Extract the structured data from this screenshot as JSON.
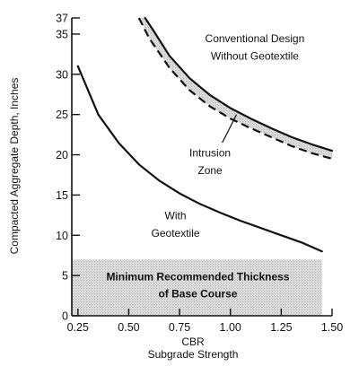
{
  "chart_data": {
    "type": "line",
    "xlabel": "CBR",
    "xlabel_sub": "Subgrade Strength",
    "ylabel": "Compacted Aggregate Depth, Inches",
    "xlim": [
      0.22,
      1.5
    ],
    "ylim": [
      0,
      37
    ],
    "x_ticks": [
      "0.25",
      "0.50",
      "0.75",
      "1.00",
      "1.25",
      "1.50"
    ],
    "x_tick_values": [
      0.25,
      0.5,
      0.75,
      1.0,
      1.25,
      1.5
    ],
    "y_ticks": [
      "0",
      "5",
      "10",
      "15",
      "20",
      "25",
      "30",
      "35",
      "37"
    ],
    "y_tick_values": [
      0,
      5,
      10,
      15,
      20,
      25,
      30,
      35,
      37
    ],
    "series": [
      {
        "style": "solid",
        "x": [
          0.25,
          0.35,
          0.45,
          0.55,
          0.65,
          0.75,
          0.85,
          0.95,
          1.05,
          1.15,
          1.25,
          1.35,
          1.45
        ],
        "y": [
          31.0,
          25.0,
          21.5,
          18.8,
          16.8,
          15.2,
          13.9,
          12.8,
          11.8,
          10.9,
          10.0,
          9.1,
          8.0
        ]
      },
      {
        "style": "solid",
        "x": [
          0.58,
          0.62,
          0.7,
          0.8,
          0.9,
          1.0,
          1.1,
          1.2,
          1.3,
          1.4,
          1.5
        ],
        "y": [
          37.0,
          35.5,
          32.3,
          29.5,
          27.4,
          25.8,
          24.5,
          23.3,
          22.2,
          21.3,
          20.5
        ]
      },
      {
        "style": "dashed",
        "x": [
          0.55,
          0.6,
          0.7,
          0.8,
          0.9,
          1.0,
          1.1,
          1.2,
          1.3,
          1.4,
          1.5
        ],
        "y": [
          37.0,
          34.5,
          30.8,
          28.0,
          26.0,
          24.5,
          23.3,
          22.2,
          21.1,
          20.2,
          19.5
        ]
      }
    ],
    "shaded_band": {
      "y_from": 0,
      "y_to": 7,
      "x_from": 0.22,
      "x_to": 1.45
    },
    "annotations": [
      {
        "text": "Conventional Design",
        "x": 1.12,
        "y": 34.0
      },
      {
        "text": "Without Geotextile",
        "x": 1.12,
        "y": 31.8
      },
      {
        "text": "Intrusion",
        "x": 0.9,
        "y": 19.8
      },
      {
        "text": "Zone",
        "x": 0.9,
        "y": 17.6
      },
      {
        "text": "With",
        "x": 0.73,
        "y": 12.0
      },
      {
        "text": "Geotextile",
        "x": 0.73,
        "y": 9.8
      },
      {
        "text": "Minimum Recommended Thickness",
        "x": 0.84,
        "y": 4.4,
        "bold": true
      },
      {
        "text": "of Base Course",
        "x": 0.84,
        "y": 2.3,
        "bold": true
      }
    ]
  }
}
